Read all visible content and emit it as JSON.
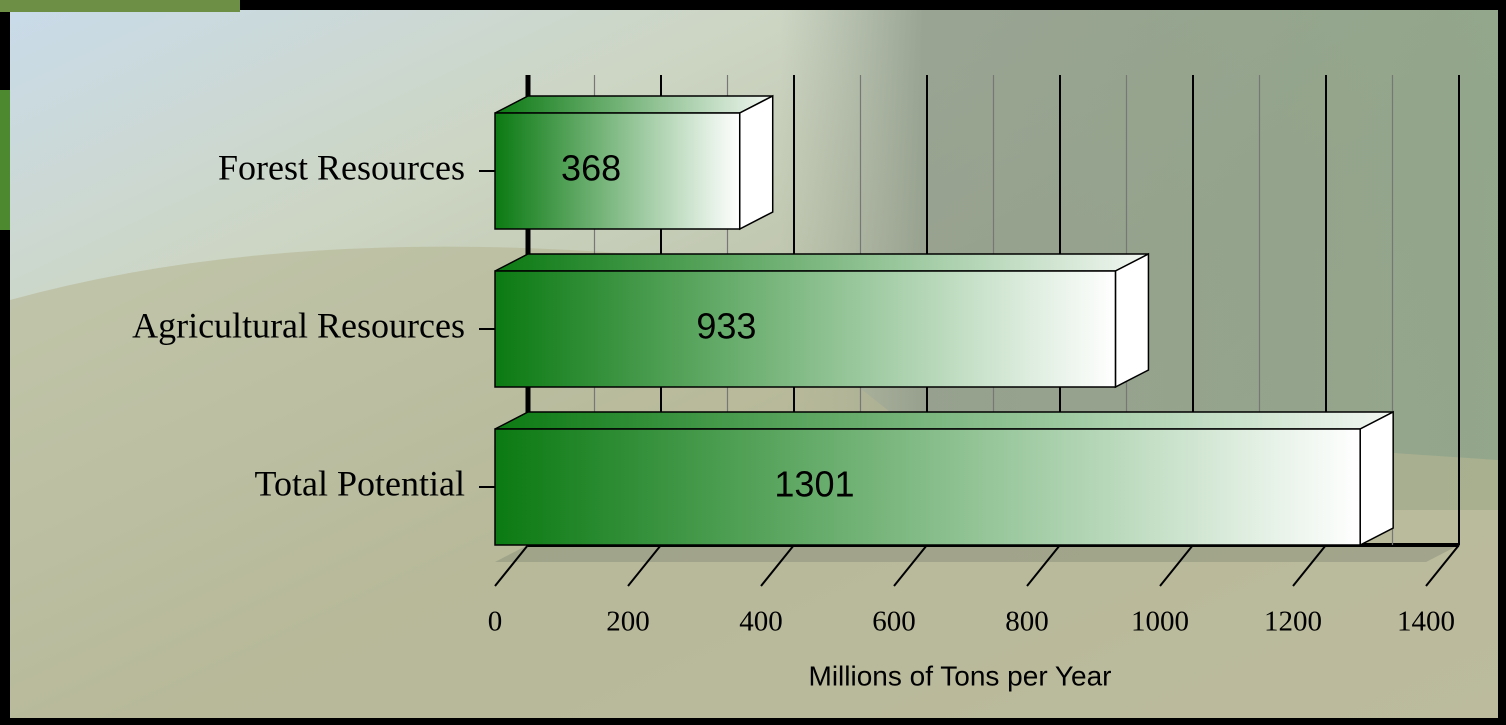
{
  "chart_data": {
    "type": "bar3d",
    "orientation": "horizontal",
    "categories": [
      "Forest Resources",
      "Agricultural Resources",
      "Total Potential"
    ],
    "values": [
      368,
      933,
      1301
    ],
    "color": "#0b7a12",
    "xlim": [
      0,
      1400
    ],
    "xticks": [
      0,
      200,
      400,
      600,
      800,
      1000,
      1200,
      1400
    ],
    "minor_xticks": [
      100,
      300,
      500,
      700,
      900,
      1100,
      1300
    ],
    "x_label": "Millions of Tons per Year",
    "grid": true
  }
}
